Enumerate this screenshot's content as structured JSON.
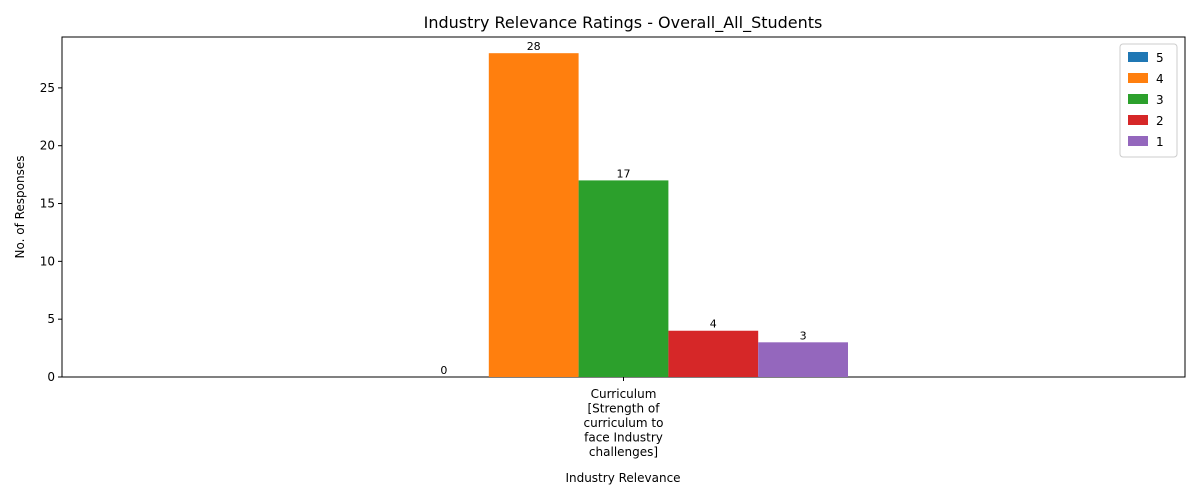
{
  "chart_data": {
    "type": "bar",
    "title": "Industry Relevance Ratings - Overall_All_Students",
    "xlabel": "Industry Relevance",
    "ylabel": "No. of Responses",
    "categories": [
      "Curriculum [Strength of curriculum to face Industry challenges]"
    ],
    "category_label_lines": [
      [
        "Curriculum",
        "[Strength of",
        "curriculum to",
        "face Industry",
        "challenges]"
      ]
    ],
    "series": [
      {
        "name": "5",
        "color": "#1f77b4",
        "values": [
          0
        ]
      },
      {
        "name": "4",
        "color": "#ff7f0e",
        "values": [
          28
        ]
      },
      {
        "name": "3",
        "color": "#2ca02c",
        "values": [
          17
        ]
      },
      {
        "name": "2",
        "color": "#d62728",
        "values": [
          4
        ]
      },
      {
        "name": "1",
        "color": "#9467bd",
        "values": [
          3
        ]
      }
    ],
    "ylim": [
      0,
      29.4
    ],
    "yticks": [
      0,
      5,
      10,
      15,
      20,
      25
    ],
    "grid": false,
    "legend_position": "top-right"
  }
}
